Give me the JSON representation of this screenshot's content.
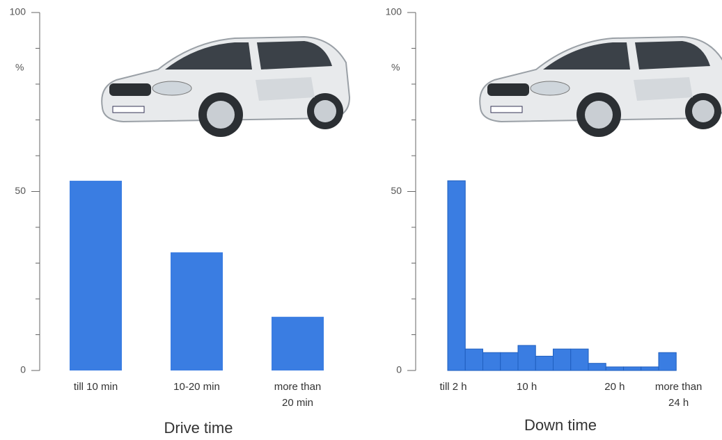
{
  "chart_data": [
    {
      "type": "bar",
      "x_label": "Drive time",
      "y_label": "%",
      "categories": [
        "till 10 min",
        "10-20 min",
        [
          "more than",
          "20 min"
        ]
      ],
      "values": [
        53,
        33,
        15
      ],
      "color": "#3a7de2",
      "ylim": [
        0,
        100
      ],
      "yticks": [
        0,
        50,
        100
      ],
      "minor_yticks": [
        10,
        20,
        30,
        40,
        60,
        70,
        80,
        90
      ]
    },
    {
      "type": "histogram",
      "x_label": "Down time",
      "y_label": "%",
      "categories": [
        "till 2 h",
        null,
        null,
        null,
        "10 h",
        null,
        null,
        null,
        null,
        "20 h",
        null,
        null,
        [
          "more than",
          "24 h"
        ]
      ],
      "values": [
        53,
        6,
        5,
        5,
        7,
        4,
        6,
        6,
        2,
        1,
        1,
        1,
        5
      ],
      "color": "#3a7de2",
      "ylim": [
        0,
        100
      ],
      "yticks": [
        0,
        50,
        100
      ],
      "minor_yticks": [
        10,
        20,
        30,
        40,
        60,
        70,
        80,
        90
      ]
    }
  ]
}
